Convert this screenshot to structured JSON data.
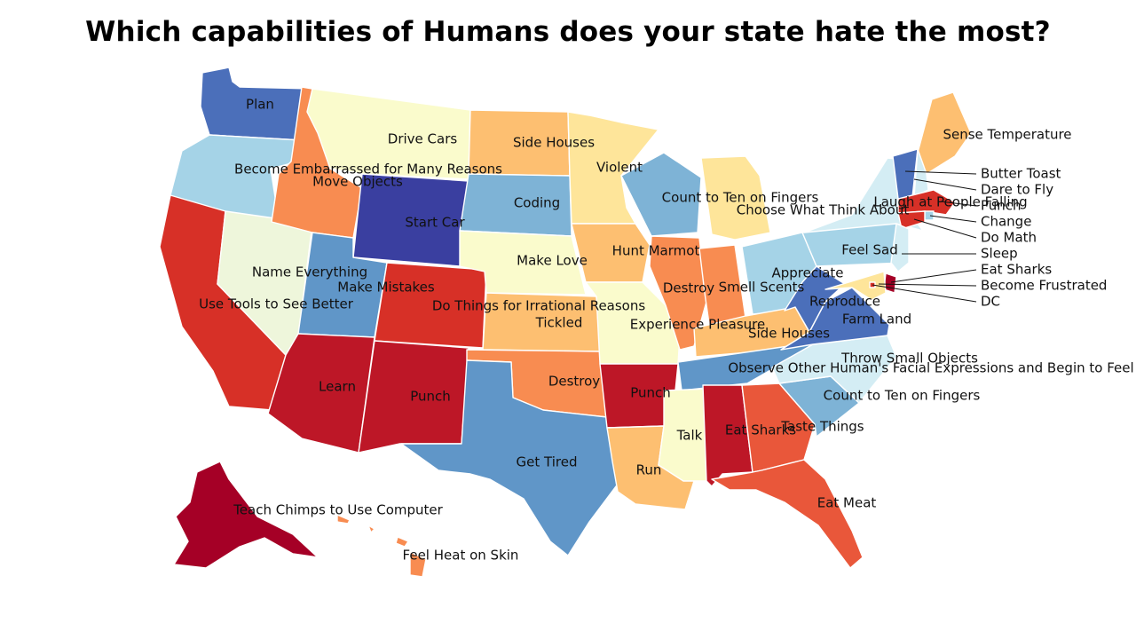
{
  "title": "Which capabilities of Humans does your state hate the most?",
  "colors": {
    "c1": "#a50026",
    "c2": "#bd1727",
    "c3": "#d73027",
    "c4": "#e9573a",
    "c5": "#f88c51",
    "c6": "#fdbf71",
    "c7": "#fee59a",
    "c8": "#fafbcc",
    "c9": "#eef6db",
    "c10": "#d4edf4",
    "c11": "#a5d3e7",
    "c12": "#7eb3d6",
    "c13": "#6096c8",
    "c14": "#4b6fba",
    "c15": "#3a3fa0"
  },
  "states": [
    {
      "id": "WA",
      "label": "Plan",
      "color": "c14"
    },
    {
      "id": "OR",
      "label": "Become Embarrassed for Many Reasons",
      "color": "c11"
    },
    {
      "id": "CA",
      "label": "Use Tools to See Better",
      "color": "c3"
    },
    {
      "id": "NV",
      "label": "Name Everything",
      "color": "c9"
    },
    {
      "id": "ID",
      "label": "Move Objects",
      "color": "c5"
    },
    {
      "id": "MT",
      "label": "Drive Cars",
      "color": "c8"
    },
    {
      "id": "WY",
      "label": "Start Car",
      "color": "c15"
    },
    {
      "id": "UT",
      "label": "Make Mistakes",
      "color": "c13"
    },
    {
      "id": "AZ",
      "label": "Learn",
      "color": "c2"
    },
    {
      "id": "CO",
      "label": "Do Things for Irrational Reasons",
      "color": "c3"
    },
    {
      "id": "NM",
      "label": "Punch",
      "color": "c2"
    },
    {
      "id": "ND",
      "label": "Side Houses",
      "color": "c6"
    },
    {
      "id": "SD",
      "label": "Coding",
      "color": "c12"
    },
    {
      "id": "NE",
      "label": "Make Love",
      "color": "c8"
    },
    {
      "id": "KS",
      "label": "Tickled",
      "color": "c6"
    },
    {
      "id": "OK",
      "label": "Destroy",
      "color": "c5"
    },
    {
      "id": "TX",
      "label": "Get Tired",
      "color": "c13"
    },
    {
      "id": "MN",
      "label": "Violent",
      "color": "c7"
    },
    {
      "id": "IA",
      "label": "Hunt Marmot",
      "color": "c6"
    },
    {
      "id": "MO",
      "label": "Experience Pleasure",
      "color": "c8"
    },
    {
      "id": "AR",
      "label": "Punch",
      "color": "c2"
    },
    {
      "id": "LA",
      "label": "Run",
      "color": "c6"
    },
    {
      "id": "WI",
      "label": "Count to Ten on Fingers",
      "color": "c12"
    },
    {
      "id": "IL",
      "label": "Destroy",
      "color": "c5"
    },
    {
      "id": "MI",
      "label": "Choose What Think About",
      "color": "c7"
    },
    {
      "id": "IN",
      "label": "Smell Scents",
      "color": "c5"
    },
    {
      "id": "OH",
      "label": "Appreciate",
      "color": "c11"
    },
    {
      "id": "KY",
      "label": "Side Houses",
      "color": "c6"
    },
    {
      "id": "TN",
      "label": "Observe Other Human's Facial Expressions and Begin to Feel",
      "color": "c13"
    },
    {
      "id": "MS",
      "label": "Talk",
      "color": "c8"
    },
    {
      "id": "AL",
      "label": "Eat Sharks",
      "color": "c2"
    },
    {
      "id": "GA",
      "label": "Taste Things",
      "color": "c4"
    },
    {
      "id": "FL",
      "label": "Eat Meat",
      "color": "c4"
    },
    {
      "id": "SC",
      "label": "Count to Ten on Fingers",
      "color": "c12"
    },
    {
      "id": "NC",
      "label": "Throw Small Objects",
      "color": "c10"
    },
    {
      "id": "VA",
      "label": "Farm Land",
      "color": "c14"
    },
    {
      "id": "WV",
      "label": "Reproduce",
      "color": "c14"
    },
    {
      "id": "PA",
      "label": "Feel Sad",
      "color": "c11"
    },
    {
      "id": "NY",
      "label": "Laugh at People Falling",
      "color": "c10"
    },
    {
      "id": "ME",
      "label": "Sense Temperature",
      "color": "c6"
    },
    {
      "id": "VT",
      "label": "Butter Toast",
      "color": "c14"
    },
    {
      "id": "NH",
      "label": "Dare to Fly",
      "color": "c10"
    },
    {
      "id": "MA",
      "label": "Punch",
      "color": "c3"
    },
    {
      "id": "RI",
      "label": "Change",
      "color": "c11"
    },
    {
      "id": "CT",
      "label": "Do Math",
      "color": "c3"
    },
    {
      "id": "NJ",
      "label": "Sleep",
      "color": "c10"
    },
    {
      "id": "DE",
      "label": "Eat Sharks",
      "color": "c1"
    },
    {
      "id": "MD",
      "label": "Become Frustrated",
      "color": "c7"
    },
    {
      "id": "DC",
      "label": "DC",
      "color": "c3"
    },
    {
      "id": "AK",
      "label": "Teach Chimps to Use Computer",
      "color": "c1"
    },
    {
      "id": "HI",
      "label": "Feel Heat on Skin",
      "color": "c5"
    }
  ]
}
